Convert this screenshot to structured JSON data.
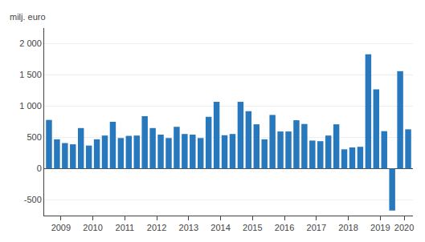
{
  "chart_data": {
    "type": "bar",
    "ylabel": "milj. euro",
    "categories": [
      "2009",
      null,
      null,
      null,
      "2010",
      null,
      null,
      null,
      "2011",
      null,
      null,
      null,
      "2012",
      null,
      null,
      null,
      "2013",
      null,
      null,
      null,
      "2014",
      null,
      null,
      null,
      "2015",
      null,
      null,
      null,
      "2016",
      null,
      null,
      null,
      "2017",
      null,
      null,
      null,
      "2018",
      null,
      null,
      null,
      "2019",
      null,
      null,
      null,
      "2020",
      null
    ],
    "values": [
      780,
      470,
      410,
      390,
      650,
      370,
      470,
      530,
      750,
      490,
      525,
      530,
      840,
      650,
      545,
      490,
      670,
      555,
      545,
      490,
      830,
      1070,
      535,
      555,
      1070,
      920,
      710,
      470,
      860,
      595,
      595,
      775,
      715,
      450,
      440,
      530,
      710,
      310,
      340,
      350,
      1830,
      1270,
      600,
      -670,
      1560,
      630
    ],
    "color": "#2878bd",
    "ylim": [
      -750,
      2250
    ],
    "yticks": [
      -500,
      0,
      500,
      {
        "value": 1000,
        "label": "1 000"
      },
      {
        "value": 1500,
        "label": "1 500"
      },
      {
        "value": 2000,
        "label": "2 000"
      }
    ],
    "grid": true
  }
}
